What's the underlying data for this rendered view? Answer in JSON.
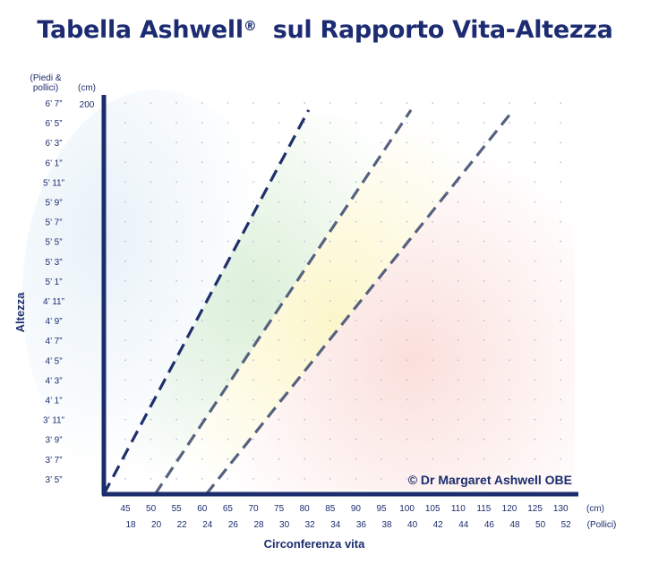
{
  "title": "Tabella Ashwell",
  "title_mark": "®",
  "title_rest": "  sul Rapporto Vita-Altezza",
  "credit": "© Dr Margaret Ashwell OBE",
  "colors": {
    "title": "#1d2c72",
    "axis": "#1c2d6e",
    "line_1": "#1f2f6a",
    "line_2": "#56617f",
    "line_3": "#56617f",
    "zone_green": "#c9e8c4",
    "zone_yellow": "#fbf3b8",
    "zone_red": "#f9d5d0",
    "zone_blue": "#d6e7f3"
  },
  "chart_data": {
    "type": "line",
    "ylabel": "Altezza",
    "xlabel": "Circonferenza vita",
    "y_unit_feet_header": [
      "(Piedi &",
      "pollici)"
    ],
    "y_unit_cm_header": "(cm)",
    "y_cm_label": "200",
    "y_feet_ticks": [
      "6’ 7”",
      "6’ 5”",
      "6’ 3”",
      "6’ 1”",
      "5’ 11”",
      "5’ 9”",
      "5’ 7”",
      "5’ 5”",
      "5’ 3”",
      "5’ 1”",
      "4’ 11”",
      "4’ 9”",
      "4’ 7”",
      "4’ 5”",
      "4’ 3”",
      "4’ 1”",
      "3’ 11”",
      "3’ 9”",
      "3’ 7”",
      "3’ 5”"
    ],
    "x_cm_ticks": [
      "45",
      "50",
      "55",
      "60",
      "65",
      "70",
      "75",
      "80",
      "85",
      "90",
      "95",
      "100",
      "105",
      "110",
      "115",
      "120",
      "125",
      "130"
    ],
    "x_cm_unit": "(cm)",
    "x_in_ticks": [
      "18",
      "20",
      "22",
      "24",
      "26",
      "28",
      "30",
      "32",
      "34",
      "36",
      "38",
      "40",
      "42",
      "44",
      "46",
      "48",
      "50",
      "52"
    ],
    "x_in_unit": "(Pollici)",
    "xlim_cm": [
      40,
      132
    ],
    "ylim_cm": [
      100,
      203
    ],
    "series": [
      {
        "x": [
          40,
          80
        ],
        "y": [
          100,
          200
        ]
      },
      {
        "x": [
          50,
          100
        ],
        "y": [
          100,
          200
        ]
      },
      {
        "x": [
          60,
          120
        ],
        "y": [
          100,
          200
        ]
      }
    ],
    "grid": "dotted"
  }
}
